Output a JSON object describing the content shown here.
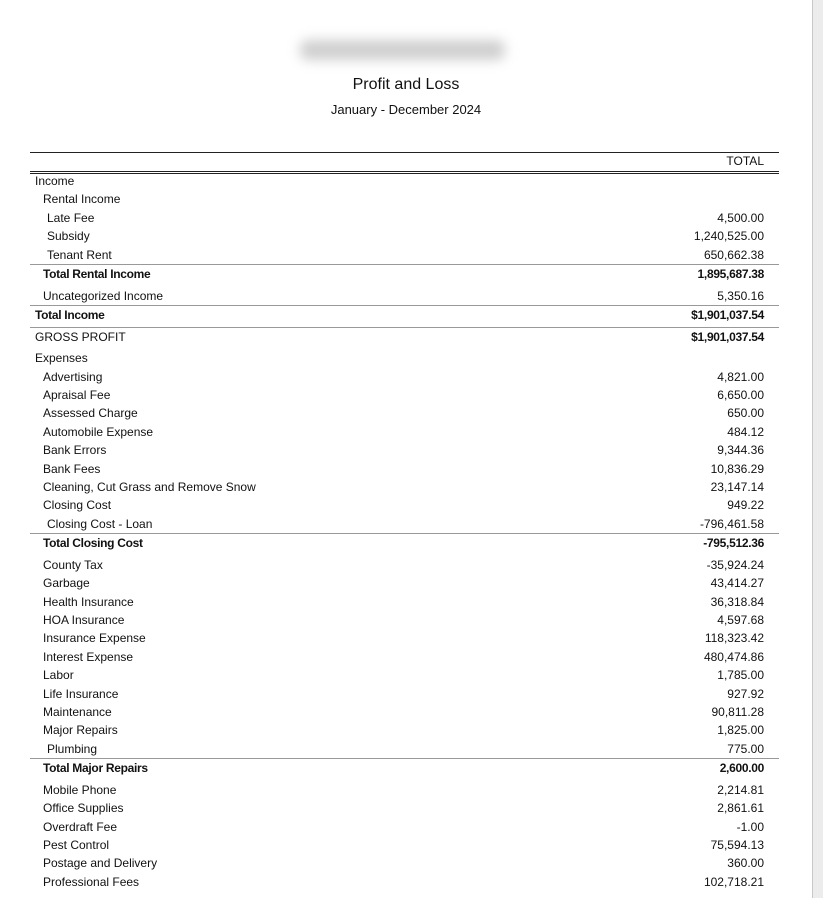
{
  "header": {
    "title": "Profit and Loss",
    "period": "January - December 2024"
  },
  "table": {
    "column_header": "TOTAL",
    "rows": [
      {
        "label": "Income",
        "level": 0
      },
      {
        "label": "Rental Income",
        "level": 1
      },
      {
        "label": "Late Fee",
        "level": 2,
        "amount": "4,500.00"
      },
      {
        "label": "Subsidy",
        "level": 2,
        "amount": "1,240,525.00"
      },
      {
        "label": "Tenant Rent",
        "level": 2,
        "amount": "650,662.38"
      },
      {
        "label": "Total Rental Income",
        "level": 1,
        "amount": "1,895,687.38",
        "style": "total"
      },
      {
        "label": "Uncategorized Income",
        "level": 1,
        "amount": "5,350.16"
      },
      {
        "label": "Total Income",
        "level": 0,
        "amount": "$1,901,037.54",
        "style": "total"
      },
      {
        "label": "GROSS PROFIT",
        "level": 0,
        "amount": "$1,901,037.54",
        "style": "gross"
      },
      {
        "label": "Expenses",
        "level": 0
      },
      {
        "label": "Advertising",
        "level": 1,
        "amount": "4,821.00"
      },
      {
        "label": "Apraisal Fee",
        "level": 1,
        "amount": "6,650.00"
      },
      {
        "label": "Assessed Charge",
        "level": 1,
        "amount": "650.00"
      },
      {
        "label": "Automobile Expense",
        "level": 1,
        "amount": "484.12"
      },
      {
        "label": "Bank Errors",
        "level": 1,
        "amount": "9,344.36"
      },
      {
        "label": "Bank Fees",
        "level": 1,
        "amount": "10,836.29"
      },
      {
        "label": "Cleaning, Cut Grass and Remove Snow",
        "level": 1,
        "amount": "23,147.14"
      },
      {
        "label": "Closing Cost",
        "level": 1,
        "amount": "949.22"
      },
      {
        "label": "Closing Cost - Loan",
        "level": 2,
        "amount": "-796,461.58"
      },
      {
        "label": "Total Closing Cost",
        "level": 1,
        "amount": "-795,512.36",
        "style": "total"
      },
      {
        "label": "County Tax",
        "level": 1,
        "amount": "-35,924.24"
      },
      {
        "label": "Garbage",
        "level": 1,
        "amount": "43,414.27"
      },
      {
        "label": "Health Insurance",
        "level": 1,
        "amount": "36,318.84"
      },
      {
        "label": "HOA Insurance",
        "level": 1,
        "amount": "4,597.68"
      },
      {
        "label": "Insurance Expense",
        "level": 1,
        "amount": "118,323.42"
      },
      {
        "label": "Interest Expense",
        "level": 1,
        "amount": "480,474.86"
      },
      {
        "label": "Labor",
        "level": 1,
        "amount": "1,785.00"
      },
      {
        "label": "Life Insurance",
        "level": 1,
        "amount": "927.92"
      },
      {
        "label": "Maintenance",
        "level": 1,
        "amount": "90,811.28"
      },
      {
        "label": "Major Repairs",
        "level": 1,
        "amount": "1,825.00"
      },
      {
        "label": "Plumbing",
        "level": 2,
        "amount": "775.00"
      },
      {
        "label": "Total Major Repairs",
        "level": 1,
        "amount": "2,600.00",
        "style": "total"
      },
      {
        "label": "Mobile Phone",
        "level": 1,
        "amount": "2,214.81"
      },
      {
        "label": "Office Supplies",
        "level": 1,
        "amount": "2,861.61"
      },
      {
        "label": "Overdraft Fee",
        "level": 1,
        "amount": "-1.00"
      },
      {
        "label": "Pest Control",
        "level": 1,
        "amount": "75,594.13"
      },
      {
        "label": "Postage and Delivery",
        "level": 1,
        "amount": "360.00"
      },
      {
        "label": "Professional Fees",
        "level": 1,
        "amount": "102,718.21"
      }
    ]
  }
}
